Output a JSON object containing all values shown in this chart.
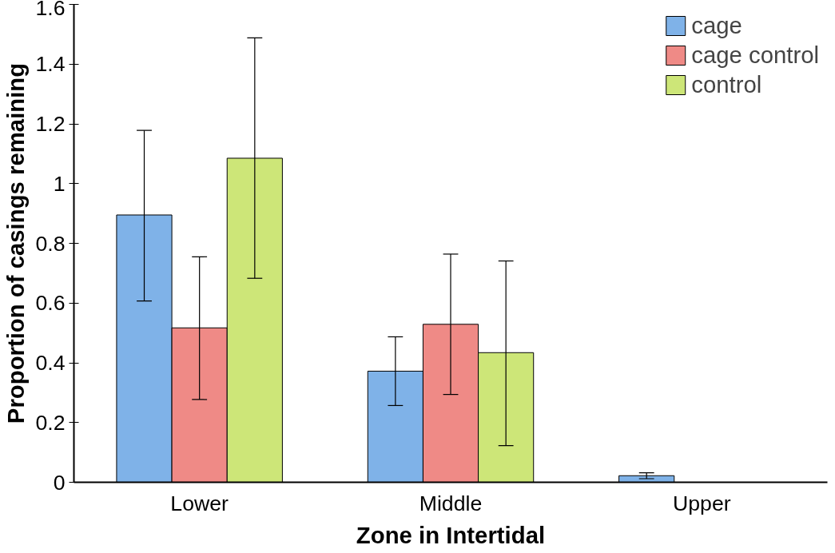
{
  "chart_data": {
    "type": "bar",
    "xlabel": "Zone in Intertidal",
    "ylabel": "Proportion of casings remaining",
    "categories": [
      "Lower",
      "Middle",
      "Upper"
    ],
    "series": [
      {
        "name": "cage",
        "color": "#7fb2e8",
        "values": [
          0.895,
          0.372,
          0.022
        ],
        "errors": [
          [
            0.607,
            1.178
          ],
          [
            0.257,
            0.487
          ],
          [
            0.012,
            0.032
          ]
        ]
      },
      {
        "name": "cage control",
        "color": "#ef8a86",
        "values": [
          0.517,
          0.529,
          null
        ],
        "errors": [
          [
            0.277,
            0.755
          ],
          [
            0.294,
            0.764
          ],
          null
        ]
      },
      {
        "name": "control",
        "color": "#cde678",
        "values": [
          1.085,
          0.434,
          null
        ],
        "errors": [
          [
            0.683,
            1.488
          ],
          [
            0.123,
            0.741
          ],
          null
        ]
      }
    ],
    "ylim": [
      0,
      1.6
    ],
    "yticks": [
      0,
      0.2,
      0.4,
      0.6,
      0.8,
      1,
      1.2,
      1.4,
      1.6
    ],
    "grid": false,
    "legend": "top right"
  }
}
